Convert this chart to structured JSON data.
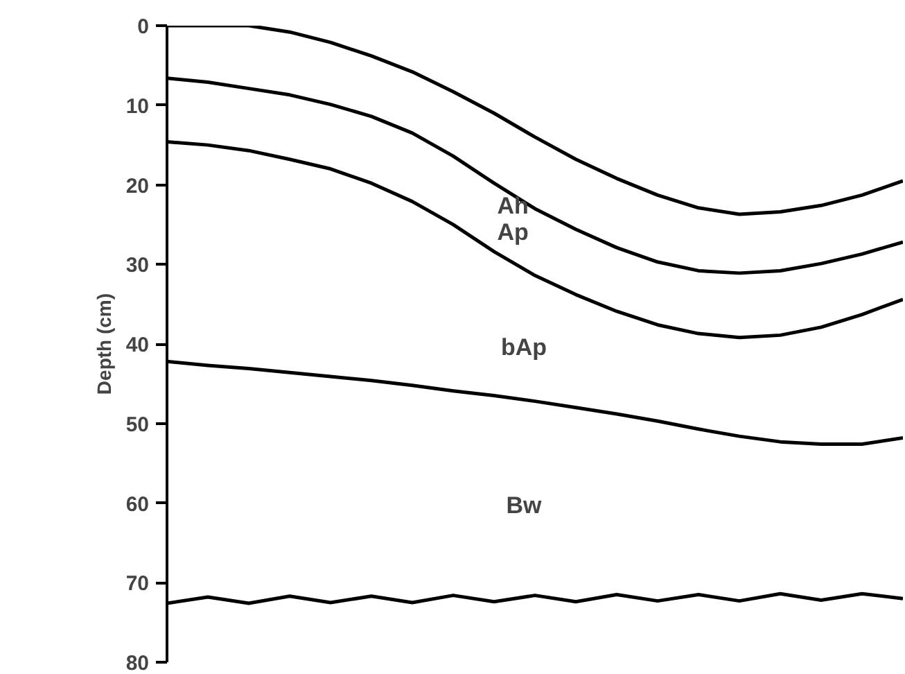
{
  "chart_data": {
    "type": "line",
    "ylabel": "Depth (cm)",
    "categories": [
      null,
      null,
      null,
      null,
      null,
      null,
      null,
      null,
      null,
      null,
      null,
      null,
      null,
      null,
      null,
      null,
      null,
      null,
      null
    ],
    "ylim": [
      80,
      0
    ],
    "yticks": [
      0,
      10,
      20,
      30,
      40,
      50,
      60,
      70,
      80
    ],
    "grid": false,
    "tick_labels": "y",
    "marker": "none",
    "line_style": "solid",
    "series": [
      {
        "color": "#000000",
        "values": [
          0,
          0,
          0,
          0.8,
          2.1,
          3.8,
          5.8,
          8.3,
          11,
          14,
          16.8,
          19.2,
          21.3,
          22.9,
          23.7,
          23.4,
          22.6,
          21.3,
          19.5
        ]
      },
      {
        "color": "#000000",
        "values": [
          6.6,
          7.1,
          7.9,
          8.7,
          9.9,
          11.4,
          13.5,
          16.4,
          19.8,
          23,
          25.6,
          27.9,
          29.7,
          30.8,
          31.1,
          30.8,
          29.9,
          28.7,
          27.2
        ]
      },
      {
        "color": "#000000",
        "values": [
          14.6,
          15,
          15.7,
          16.8,
          18,
          19.8,
          22.1,
          25,
          28.4,
          31.4,
          33.8,
          35.9,
          37.6,
          38.7,
          39.2,
          38.9,
          37.9,
          36.3,
          34.4
        ]
      },
      {
        "color": "#000000",
        "values": [
          42.2,
          42.7,
          43.1,
          43.6,
          44.1,
          44.6,
          45.2,
          45.9,
          46.5,
          47.2,
          48,
          48.8,
          49.7,
          50.7,
          51.6,
          52.3,
          52.6,
          52.6,
          51.8
        ]
      },
      {
        "color": "#000000",
        "values": [
          72.6,
          71.8,
          72.6,
          71.7,
          72.5,
          71.7,
          72.5,
          71.6,
          72.4,
          71.6,
          72.4,
          71.5,
          72.3,
          71.5,
          72.3,
          71.4,
          72.2,
          71.4,
          72
        ]
      }
    ],
    "annotations": [
      "Ah",
      "Ap",
      "bAp",
      "Bw"
    ]
  }
}
